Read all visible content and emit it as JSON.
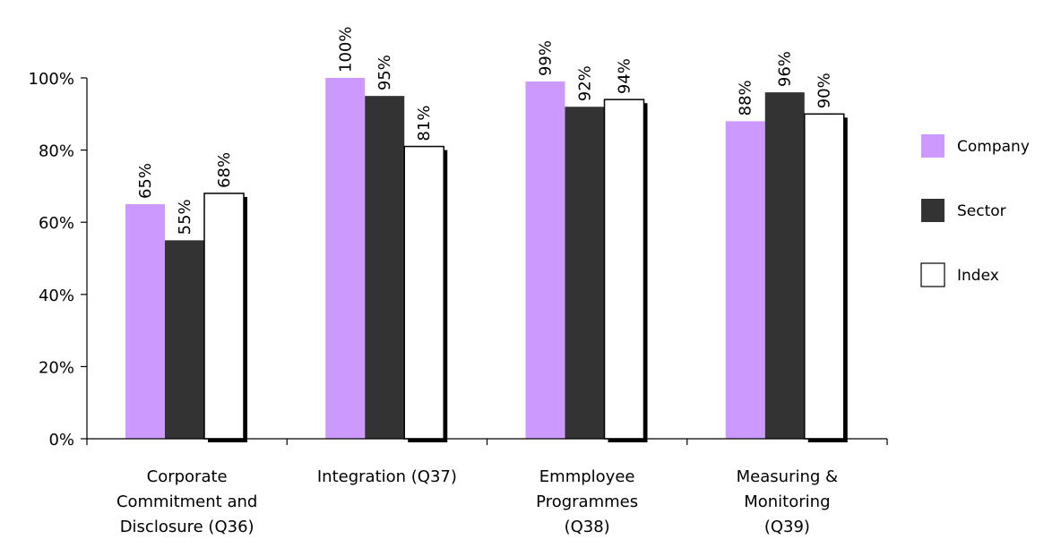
{
  "chart_data": {
    "type": "bar",
    "categories": [
      [
        "Corporate",
        "Commitment and",
        "Disclosure (Q36)"
      ],
      [
        "Integration (Q37)"
      ],
      [
        "Emmployee",
        "Programmes",
        "(Q38)"
      ],
      [
        "Measuring &",
        "Monitoring",
        "(Q39)"
      ]
    ],
    "series": [
      {
        "name": "Company",
        "values": [
          65,
          100,
          99,
          88
        ],
        "labels": [
          "65%",
          "100%",
          "99%",
          "88%"
        ],
        "color": "#cc99ff"
      },
      {
        "name": "Sector",
        "values": [
          55,
          95,
          92,
          96
        ],
        "labels": [
          "55%",
          "95%",
          "92%",
          "96%"
        ],
        "color": "#333333"
      },
      {
        "name": "Index",
        "values": [
          68,
          81,
          94,
          90
        ],
        "labels": [
          "68%",
          "81%",
          "94%",
          "90%"
        ],
        "color": "#ffffff"
      }
    ],
    "ylim": [
      0,
      100
    ],
    "yticks": [
      "0%",
      "20%",
      "40%",
      "60%",
      "80%",
      "100%"
    ],
    "legend_position": "right",
    "grid": false
  }
}
